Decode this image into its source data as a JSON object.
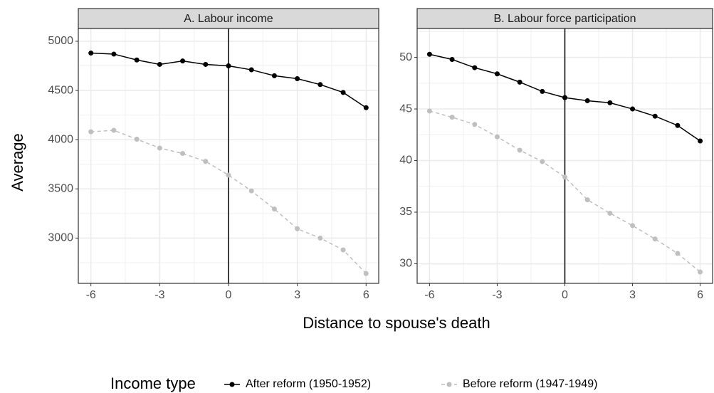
{
  "x_label": "Distance to spouse's death",
  "y_label": "Average",
  "legend_title": "Income type",
  "chart_data": [
    {
      "type": "line",
      "title": "A. Labour income",
      "x": [
        -6,
        -5,
        -4,
        -3,
        -2,
        -1,
        0,
        1,
        2,
        3,
        4,
        5,
        6
      ],
      "series": [
        {
          "name": "After reform (1950-1952)",
          "color": "#000000",
          "linestyle": "solid",
          "values": [
            4880,
            4870,
            4810,
            4765,
            4800,
            4765,
            4750,
            4710,
            4650,
            4620,
            4560,
            4480,
            4325
          ]
        },
        {
          "name": "Before reform (1947-1949)",
          "color": "#bfbfbf",
          "linestyle": "dashed",
          "values": [
            4080,
            4095,
            4005,
            3915,
            3860,
            3780,
            3640,
            3480,
            3295,
            3095,
            3000,
            2880,
            2640
          ]
        }
      ],
      "xlim": [
        -6.55,
        6.55
      ],
      "xticks": [
        -6,
        -3,
        0,
        3,
        6
      ],
      "ylim": [
        2540,
        5130
      ],
      "yticks": [
        3000,
        3500,
        4000,
        4500,
        5000
      ],
      "vline": 0,
      "grid": true
    },
    {
      "type": "line",
      "title": "B. Labour force participation",
      "x": [
        -6,
        -5,
        -4,
        -3,
        -2,
        -1,
        0,
        1,
        2,
        3,
        4,
        5,
        6
      ],
      "series": [
        {
          "name": "After reform (1950-1952)",
          "color": "#000000",
          "linestyle": "solid",
          "values": [
            50.3,
            49.8,
            49.0,
            48.4,
            47.6,
            46.7,
            46.1,
            45.8,
            45.6,
            45.0,
            44.3,
            43.4,
            41.9
          ]
        },
        {
          "name": "Before reform (1947-1949)",
          "color": "#bfbfbf",
          "linestyle": "dashed",
          "values": [
            44.8,
            44.2,
            43.5,
            42.3,
            41.0,
            39.9,
            38.4,
            36.2,
            34.9,
            33.7,
            32.4,
            31.0,
            29.2
          ]
        }
      ],
      "xlim": [
        -6.55,
        6.55
      ],
      "xticks": [
        -6,
        -3,
        0,
        3,
        6
      ],
      "ylim": [
        28.1,
        52.8
      ],
      "yticks": [
        30,
        35,
        40,
        45,
        50
      ],
      "vline": 0,
      "grid": true
    }
  ]
}
